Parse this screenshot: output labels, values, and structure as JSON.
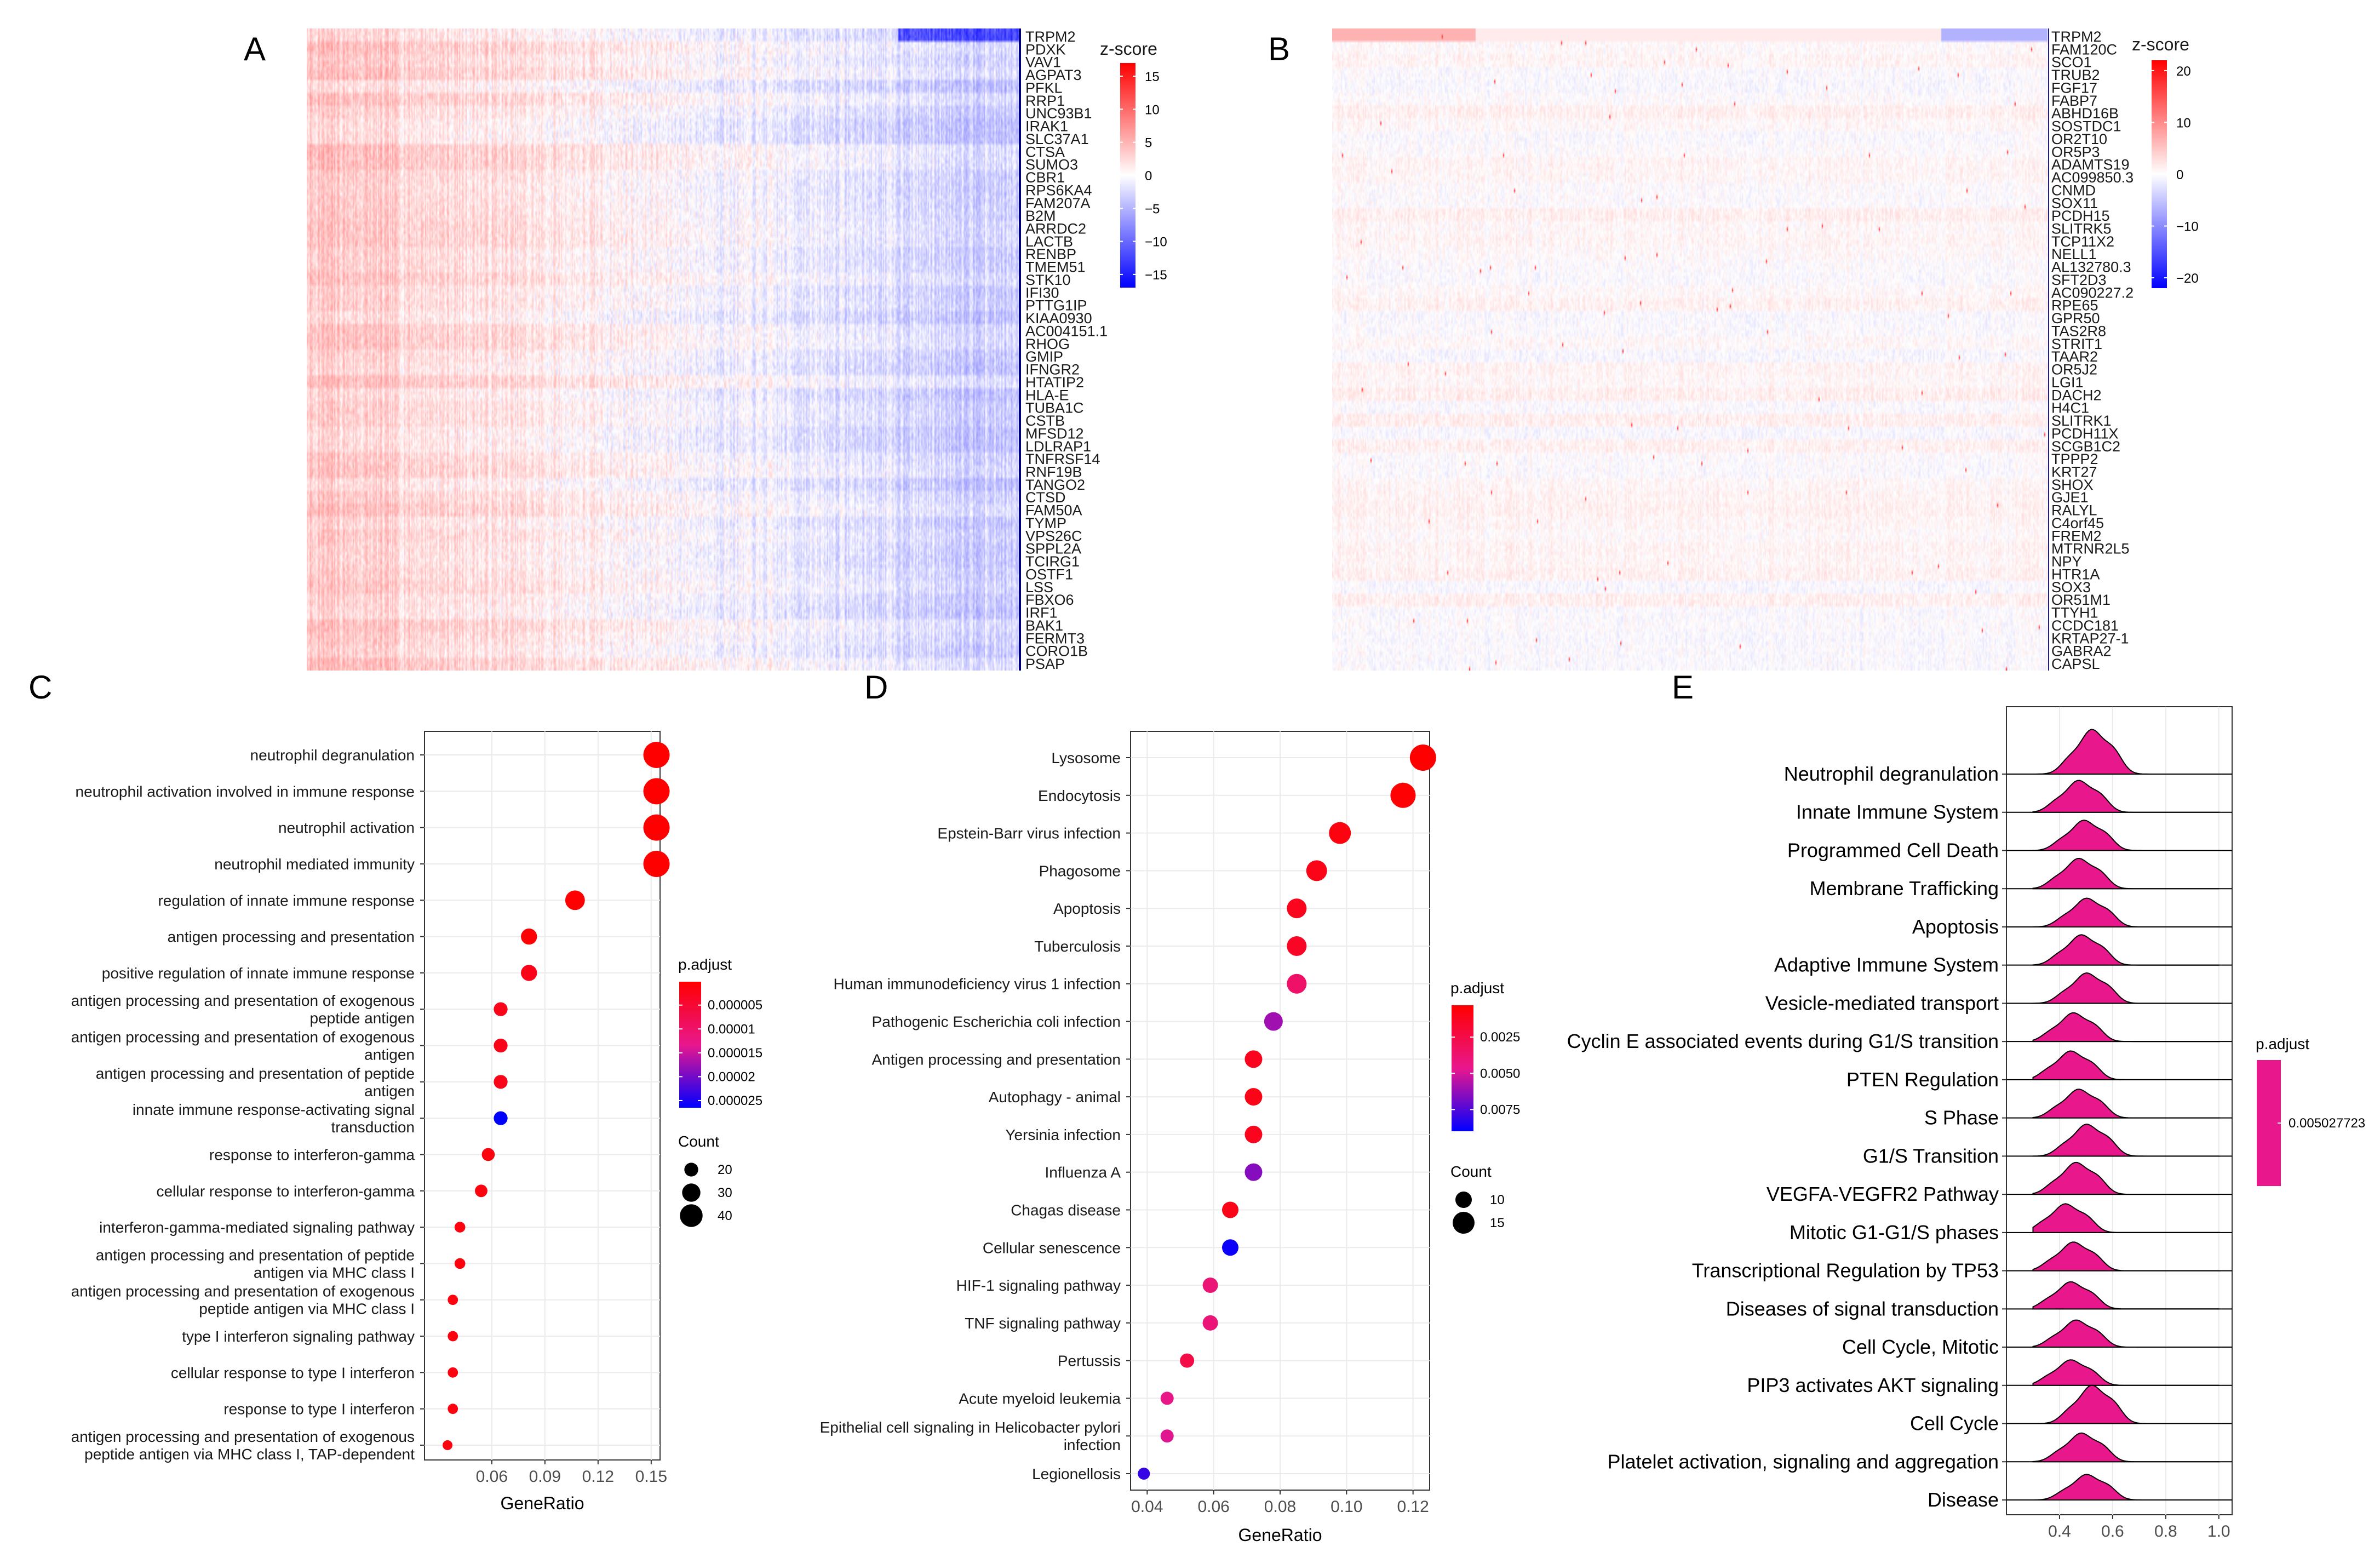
{
  "panels": [
    "A",
    "B",
    "C",
    "D",
    "E"
  ],
  "colors": {
    "red": "#ff0000",
    "blue": "#0000ff",
    "magenta": "#e8178c",
    "heat_low": "#0000ff",
    "heat_mid": "#ffffff",
    "heat_high": "#ff0000"
  },
  "chart_data": [
    {
      "id": "A",
      "type": "heatmap",
      "title": "",
      "legend_title": "z-score",
      "legend_ticks": [
        15,
        10,
        5,
        0,
        -5,
        -10,
        -15
      ],
      "ylim": [
        -17,
        17
      ],
      "genes": [
        "TRPM2",
        "PDXK",
        "VAV1",
        "AGPAT3",
        "PFKL",
        "RRP1",
        "UNC93B1",
        "IRAK1",
        "SLC37A1",
        "CTSA",
        "SUMO3",
        "CBR1",
        "RPS6KA4",
        "FAM207A",
        "B2M",
        "ARRDC2",
        "LACTB",
        "RENBP",
        "TMEM51",
        "STK10",
        "IFI30",
        "PTTG1IP",
        "KIAA0930",
        "AC004151.1",
        "RHOG",
        "GMIP",
        "IFNGR2",
        "HTATIP2",
        "HLA-E",
        "TUBA1C",
        "CSTB",
        "MFSD12",
        "LDLRAP1",
        "TNFRSF14",
        "RNF19B",
        "TANGO2",
        "CTSD",
        "FAM50A",
        "TYMP",
        "VPS26C",
        "SPPL2A",
        "TCIRG1",
        "OSTF1",
        "LSS",
        "FBXO6",
        "IRF1",
        "BAK1",
        "FERMT3",
        "CORO1B",
        "PSAP"
      ]
    },
    {
      "id": "B",
      "type": "heatmap",
      "title": "",
      "legend_title": "z-score",
      "legend_ticks": [
        20,
        10,
        0,
        -10,
        -20
      ],
      "ylim": [
        -22,
        22
      ],
      "genes": [
        "TRPM2",
        "FAM120C",
        "SCO1",
        "TRUB2",
        "FGF17",
        "FABP7",
        "ABHD16B",
        "SOSTDC1",
        "OR2T10",
        "OR5P3",
        "ADAMTS19",
        "AC099850.3",
        "CNMD",
        "SOX11",
        "PCDH15",
        "SLITRK5",
        "TCP11X2",
        "NELL1",
        "AL132780.3",
        "SFT2D3",
        "AC090227.2",
        "RPE65",
        "GPR50",
        "TAS2R8",
        "STRIT1",
        "TAAR2",
        "OR5J2",
        "LGI1",
        "DACH2",
        "H4C1",
        "SLITRK1",
        "PCDH11X",
        "SCGB1C2",
        "TPPP2",
        "KRT27",
        "SHOX",
        "GJE1",
        "RALYL",
        "C4orf45",
        "FREM2",
        "MTRNR2L5",
        "NPY",
        "HTR1A",
        "SOX3",
        "OR51M1",
        "TTYH1",
        "CCDC181",
        "KRTAP27-1",
        "GABRA2",
        "CAPSL"
      ]
    },
    {
      "id": "C",
      "type": "scatter",
      "title": "",
      "xlabel": "GeneRatio",
      "ylabel": "",
      "xlim": [
        0.022,
        0.155
      ],
      "xticks": [
        0.06,
        0.09,
        0.12,
        0.15
      ],
      "xtick_labels": [
        "0.06",
        "0.09",
        "0.12",
        "0.15"
      ],
      "terms": [
        [
          "neutrophil degranulation"
        ],
        [
          "neutrophil activation involved in immune response"
        ],
        [
          "neutrophil activation"
        ],
        [
          "neutrophil mediated immunity"
        ],
        [
          "regulation of innate immune response"
        ],
        [
          "antigen processing and presentation"
        ],
        [
          "positive regulation of innate immune response"
        ],
        [
          "antigen processing and presentation of exogenous",
          "peptide antigen"
        ],
        [
          "antigen processing and presentation of exogenous",
          "antigen"
        ],
        [
          "antigen processing and presentation of peptide",
          "antigen"
        ],
        [
          "innate immune response-activating signal",
          "transduction"
        ],
        [
          "response to interferon-gamma"
        ],
        [
          "cellular response to interferon-gamma"
        ],
        [
          "interferon-gamma-mediated signaling pathway"
        ],
        [
          "antigen processing and presentation of peptide",
          "antigen via MHC class I"
        ],
        [
          "antigen processing and presentation of exogenous",
          "peptide antigen via MHC class I"
        ],
        [
          "type I interferon signaling pathway"
        ],
        [
          "cellular response to type I interferon"
        ],
        [
          "response to type I interferon"
        ],
        [
          "antigen processing and presentation of exogenous",
          "peptide antigen via MHC class I, TAP-dependent"
        ]
      ],
      "gene_ratio": [
        0.153,
        0.153,
        0.153,
        0.153,
        0.107,
        0.081,
        0.081,
        0.065,
        0.065,
        0.065,
        0.065,
        0.058,
        0.054,
        0.042,
        0.042,
        0.038,
        0.038,
        0.038,
        0.038,
        0.035
      ],
      "count": [
        48,
        48,
        48,
        48,
        33,
        25,
        25,
        20,
        20,
        20,
        20,
        18,
        17,
        13,
        13,
        12,
        12,
        12,
        12,
        11
      ],
      "p_adjust": [
        1e-07,
        1e-07,
        1e-07,
        1e-07,
        3e-07,
        5e-07,
        2.5e-06,
        2.5e-06,
        2.5e-06,
        2.5e-06,
        2.65e-05,
        1.5e-06,
        1.5e-06,
        1.5e-06,
        1.5e-06,
        1.5e-06,
        1.5e-06,
        1.5e-06,
        1.5e-06,
        1.5e-06
      ],
      "color_legend": {
        "title": "p.adjust",
        "ticks": [
          5e-06,
          1e-05,
          1.5e-05,
          2e-05,
          2.5e-05
        ],
        "tick_labels": [
          "0.000005",
          "0.00001",
          "0.000015",
          "0.00002",
          "0.000025"
        ],
        "range": [
          1e-07,
          2.65e-05
        ]
      },
      "size_legend": {
        "title": "Count",
        "values": [
          20,
          30,
          40
        ]
      }
    },
    {
      "id": "D",
      "type": "scatter",
      "title": "",
      "xlabel": "GeneRatio",
      "ylabel": "",
      "xlim": [
        0.035,
        0.125
      ],
      "xticks": [
        0.04,
        0.06,
        0.08,
        0.1,
        0.12
      ],
      "xtick_labels": [
        "0.04",
        "0.06",
        "0.08",
        "0.10",
        "0.12"
      ],
      "terms": [
        [
          "Lysosome"
        ],
        [
          "Endocytosis"
        ],
        [
          "Epstein-Barr virus infection"
        ],
        [
          "Phagosome"
        ],
        [
          "Apoptosis"
        ],
        [
          "Tuberculosis"
        ],
        [
          "Human immunodeficiency virus 1 infection"
        ],
        [
          "Pathogenic Escherichia coli infection"
        ],
        [
          "Antigen processing and presentation"
        ],
        [
          "Autophagy - animal"
        ],
        [
          "Yersinia infection"
        ],
        [
          "Influenza A"
        ],
        [
          "Chagas disease"
        ],
        [
          "Cellular senescence"
        ],
        [
          "HIF-1 signaling pathway"
        ],
        [
          "TNF signaling pathway"
        ],
        [
          "Pertussis"
        ],
        [
          "Acute myeloid leukemia"
        ],
        [
          "Epithelial cell signaling in Helicobacter pylori",
          "infection"
        ],
        [
          "Legionellosis"
        ]
      ],
      "gene_ratio": [
        0.123,
        0.117,
        0.098,
        0.091,
        0.085,
        0.085,
        0.085,
        0.078,
        0.072,
        0.072,
        0.072,
        0.072,
        0.065,
        0.065,
        0.059,
        0.059,
        0.052,
        0.046,
        0.046,
        0.039
      ],
      "count": [
        19,
        18,
        15,
        14,
        13,
        13,
        13,
        12,
        11,
        11,
        11,
        11,
        10,
        10,
        9,
        9,
        8,
        7,
        7,
        6
      ],
      "p_adjust": [
        0.0003,
        0.0004,
        0.0008,
        0.001,
        0.0012,
        0.0015,
        0.0035,
        0.006,
        0.0012,
        0.001,
        0.0012,
        0.0065,
        0.001,
        0.0088,
        0.004,
        0.004,
        0.0025,
        0.0045,
        0.0048,
        0.008
      ],
      "color_legend": {
        "title": "p.adjust",
        "ticks": [
          0.0025,
          0.005,
          0.0075
        ],
        "tick_labels": [
          "0.0025",
          "0.0050",
          "0.0075"
        ],
        "range": [
          0.0003,
          0.009
        ]
      },
      "size_legend": {
        "title": "Count",
        "values": [
          10,
          15
        ]
      }
    },
    {
      "id": "E",
      "type": "area",
      "subtype": "ridgeline",
      "title": "",
      "xlabel": "",
      "ylabel": "",
      "xlim": [
        0.2,
        1.05
      ],
      "xticks": [
        0.4,
        0.6,
        0.8,
        1.0
      ],
      "xtick_labels": [
        "0.4",
        "0.6",
        "0.8",
        "1.0"
      ],
      "terms": [
        "Neutrophil degranulation",
        "Innate Immune System",
        "Programmed Cell Death",
        "Membrane Trafficking",
        "Apoptosis",
        "Adaptive Immune System",
        "Vesicle-mediated transport",
        "Cyclin E associated events during G1/S transition",
        "PTEN Regulation",
        "S Phase",
        "G1/S Transition",
        "VEGFA-VEGFR2 Pathway",
        "Mitotic G1-G1/S phases",
        "Transcriptional Regulation by TP53",
        "Diseases of signal transduction",
        "Cell Cycle, Mitotic",
        "PIP3 activates AKT signaling",
        "Cell Cycle",
        "Platelet activation, signaling and aggregation",
        "Disease"
      ],
      "peak_positions": [
        0.52,
        0.47,
        0.49,
        0.47,
        0.5,
        0.48,
        0.5,
        0.45,
        0.44,
        0.47,
        0.5,
        0.46,
        0.42,
        0.45,
        0.44,
        0.46,
        0.44,
        0.52,
        0.48,
        0.5
      ],
      "density_heights": [
        1.4,
        1.0,
        0.95,
        0.95,
        0.9,
        0.95,
        0.95,
        0.9,
        0.9,
        0.9,
        1.0,
        1.0,
        0.9,
        0.9,
        0.85,
        0.85,
        0.8,
        1.2,
        0.9,
        0.8
      ],
      "color_legend": {
        "title": "p.adjust",
        "label": "0.005027723"
      }
    }
  ]
}
